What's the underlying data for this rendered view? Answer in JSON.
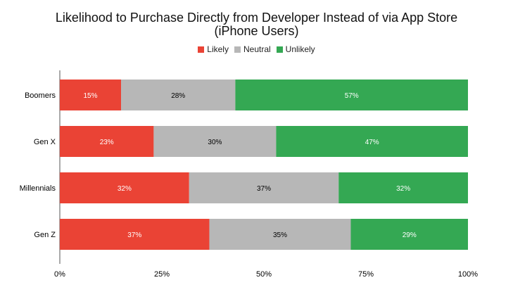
{
  "chart_data": {
    "type": "bar",
    "orientation": "horizontal",
    "stacked": "percent",
    "title": "Likelihood to Purchase Directly from Developer Instead of via App Store",
    "subtitle": "(iPhone Users)",
    "categories": [
      "Boomers",
      "Gen X",
      "Millennials",
      "Gen Z"
    ],
    "series": [
      {
        "name": "Likely",
        "color": "#ea4335",
        "values": [
          15,
          23,
          32,
          37
        ],
        "labels": [
          "15%",
          "23%",
          "32%",
          "37%"
        ]
      },
      {
        "name": "Neutral",
        "color": "#b7b7b7",
        "values": [
          28,
          30,
          37,
          35
        ],
        "labels": [
          "28%",
          "30%",
          "37%",
          "35%"
        ]
      },
      {
        "name": "Unlikely",
        "color": "#34a853",
        "values": [
          57,
          47,
          32,
          29
        ],
        "labels": [
          "57%",
          "47%",
          "32%",
          "29%"
        ]
      }
    ],
    "xlim": [
      0,
      100
    ],
    "x_ticks": [
      "0%",
      "25%",
      "50%",
      "75%",
      "100%"
    ],
    "legend_position": "top-center",
    "grid": false
  }
}
